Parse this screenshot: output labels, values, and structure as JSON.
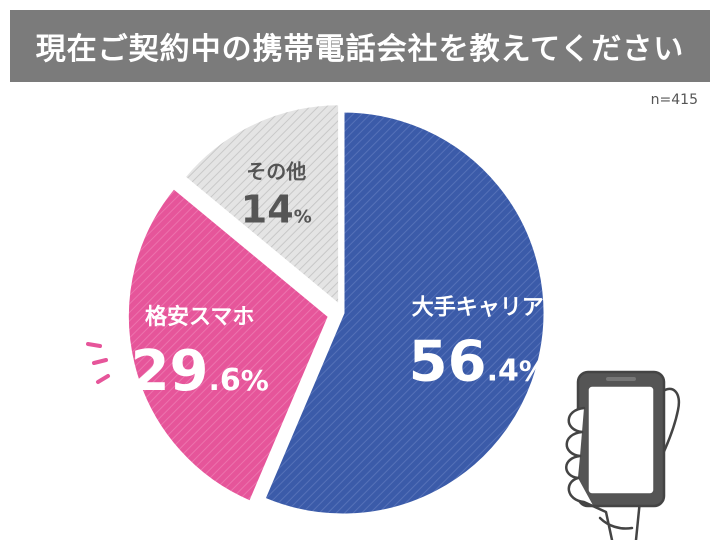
{
  "header": {
    "title": "現在ご契約中の携帯電話会社を教えてください"
  },
  "sample_size": "n=415",
  "chart_data": {
    "type": "pie",
    "title": "現在ご契約中の携帯電話会社を教えてください",
    "slices": [
      {
        "label": "大手キャリア",
        "value": 56.4,
        "display_main": "56",
        "display_decimal": ".4",
        "color": "#3b5ba9"
      },
      {
        "label": "格安スマホ",
        "value": 29.6,
        "display_main": "29",
        "display_decimal": ".6",
        "color": "#e6559a"
      },
      {
        "label": "その他",
        "value": 14,
        "display_main": "14",
        "display_decimal": "",
        "color": "#dcdcdc"
      }
    ],
    "unit": "%",
    "start_angle_deg": 0,
    "direction": "clockwise",
    "pattern": "diagonal-stripes"
  },
  "decor": {
    "hand_holding_phone": "phone-hand-illustration",
    "emphasis_lines": "motion-lines-icon"
  }
}
